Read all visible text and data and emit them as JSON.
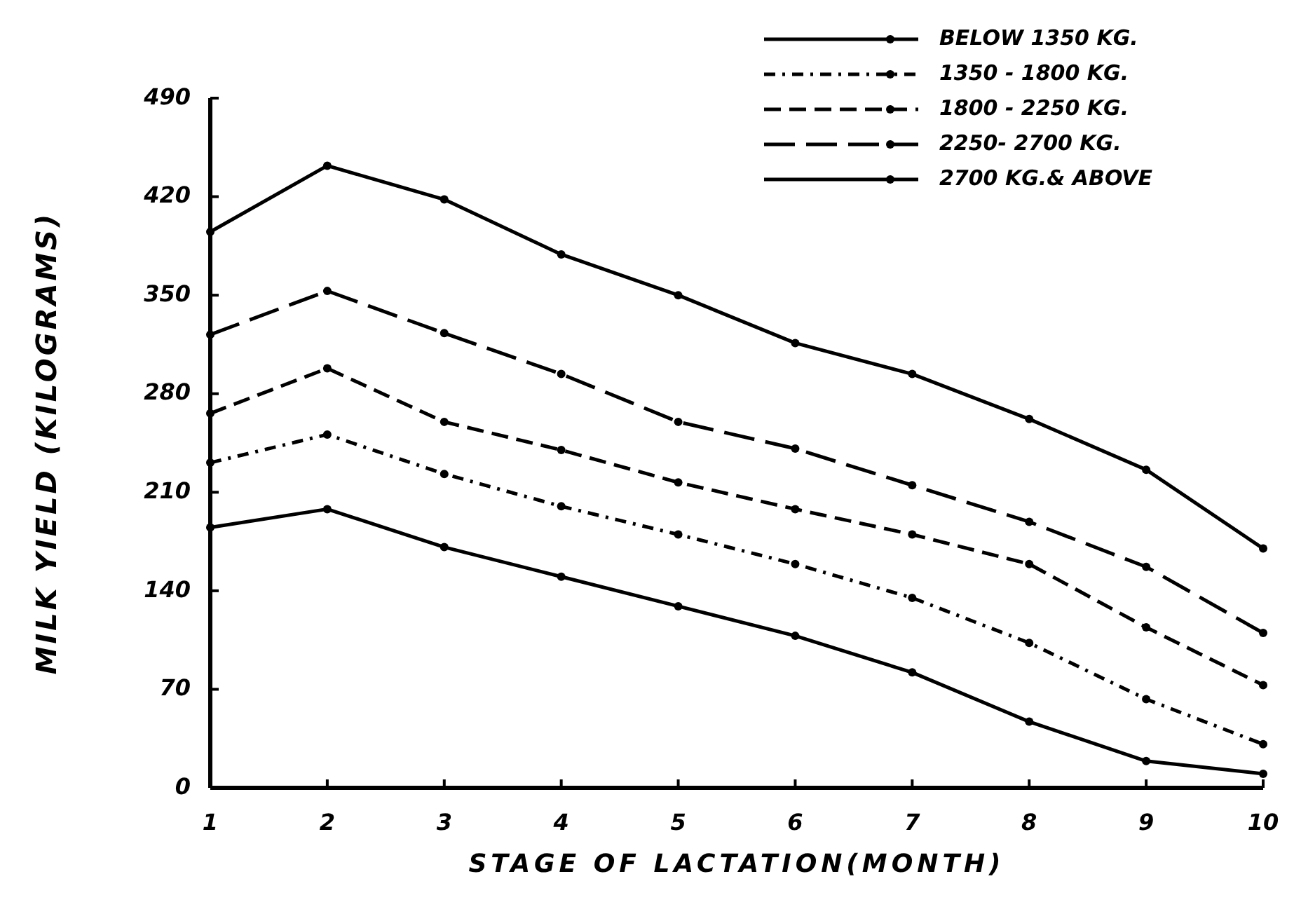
{
  "chart_data": {
    "type": "line",
    "xlabel": "STAGE OF LACTATION(MONTH)",
    "ylabel": "MILK YIELD (KILOGRAMS)",
    "x": [
      1,
      2,
      3,
      4,
      5,
      6,
      7,
      8,
      9,
      10
    ],
    "xlim": [
      1,
      10
    ],
    "xticks": [
      1,
      2,
      3,
      4,
      5,
      6,
      7,
      8,
      9,
      10
    ],
    "ylim": [
      0,
      490
    ],
    "yticks": [
      0,
      70,
      140,
      210,
      280,
      350,
      420,
      490
    ],
    "grid": false,
    "legend": "top right",
    "marker": "circle",
    "series": [
      {
        "name": "BELOW 1350 KG.",
        "color": "#000000",
        "line_style": "solid",
        "values": [
          185,
          198,
          171,
          150,
          129,
          108,
          82,
          47,
          19,
          10
        ]
      },
      {
        "name": "1350 - 1800 KG.",
        "color": "#000000",
        "line_style": "dotted",
        "values": [
          231,
          251,
          223,
          200,
          180,
          159,
          135,
          103,
          63,
          31
        ]
      },
      {
        "name": "1800 - 2250 KG.",
        "color": "#000000",
        "line_style": "dashed",
        "values": [
          266,
          298,
          260,
          240,
          217,
          198,
          180,
          159,
          114,
          73
        ]
      },
      {
        "name": "2250- 2700 KG.",
        "color": "#000000",
        "line_style": "dashed",
        "values": [
          322,
          353,
          323,
          294,
          260,
          241,
          215,
          189,
          157,
          110
        ]
      },
      {
        "name": "2700 KG.& ABOVE",
        "color": "#000000",
        "line_style": "solid",
        "values": [
          395,
          442,
          418,
          379,
          350,
          316,
          294,
          262,
          226,
          170
        ]
      }
    ]
  }
}
